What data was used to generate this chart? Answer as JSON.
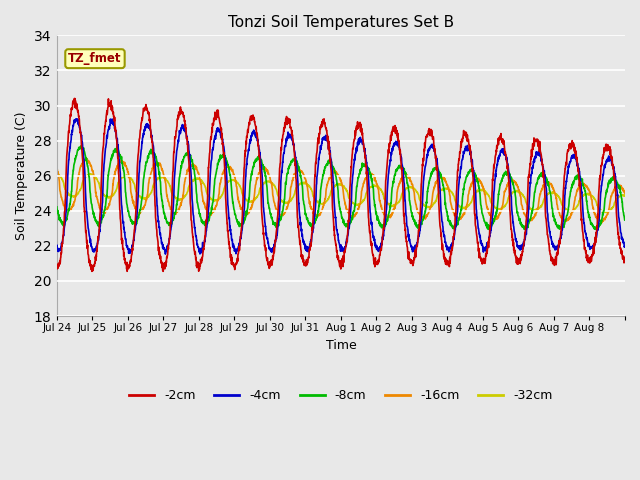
{
  "title": "Tonzi Soil Temperatures Set B",
  "xlabel": "Time",
  "ylabel": "Soil Temperature (C)",
  "ylim": [
    18,
    34
  ],
  "yticks": [
    18,
    20,
    22,
    24,
    26,
    28,
    30,
    32,
    34
  ],
  "fig_bg_color": "#e8e8e8",
  "plot_bg_color": "#e8e8e8",
  "legend_label": "TZ_fmet",
  "series_labels": [
    "-2cm",
    "-4cm",
    "-8cm",
    "-16cm",
    "-32cm"
  ],
  "series_colors": [
    "#cc0000",
    "#0000cc",
    "#00bb00",
    "#ee8800",
    "#cccc00"
  ],
  "xtick_labels": [
    "Jul 24",
    "Jul 25",
    "Jul 26",
    "Jul 27",
    "Jul 28",
    "Jul 29",
    "Jul 30",
    "Jul 31",
    "Aug 1",
    "Aug 2",
    "Aug 3",
    "Aug 4",
    "Aug 5",
    "Aug 6",
    "Aug 7",
    "Aug 8"
  ],
  "n_days": 16,
  "points_per_day": 144
}
